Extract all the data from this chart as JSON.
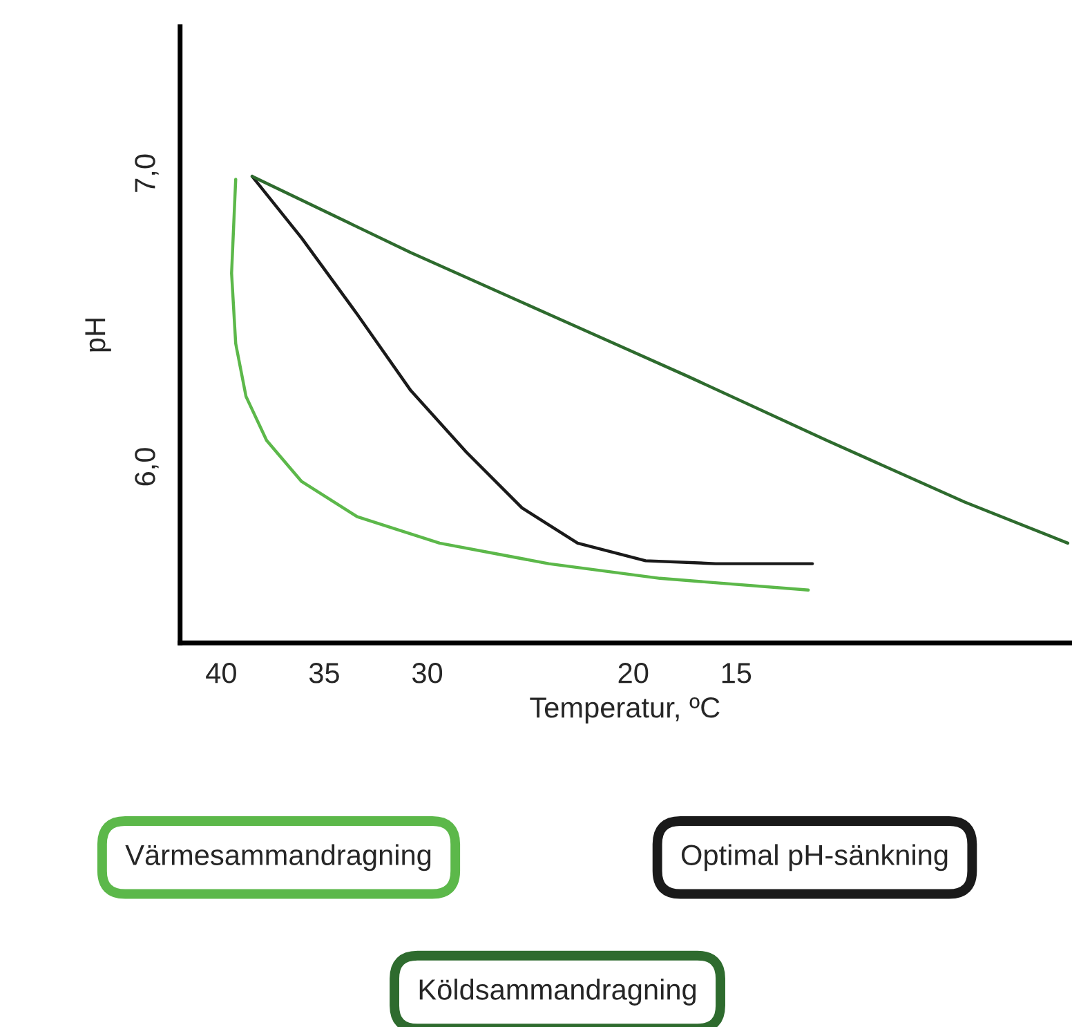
{
  "chart_data": {
    "type": "line",
    "xlabel": "Temperatur, ºC",
    "ylabel": "pH",
    "xlim": [
      42,
      -1.2
    ],
    "ylim": [
      5.4,
      7.5
    ],
    "xticks": [
      40,
      35,
      30,
      20,
      15
    ],
    "yticks": [
      {
        "value": 6.0,
        "label": "6,0"
      },
      {
        "value": 7.0,
        "label": "7,0"
      }
    ],
    "grid": false,
    "legend": "bottom",
    "marker": "none",
    "line_style": "solid",
    "series": [
      {
        "name": "Värmesammandragning",
        "color": "#5cb84a",
        "x": [
          39.3,
          39.5,
          39.3,
          38.8,
          37.8,
          36.1,
          33.4,
          29.4,
          24.1,
          18.7,
          11.5
        ],
        "values": [
          6.98,
          6.66,
          6.42,
          6.24,
          6.09,
          5.95,
          5.83,
          5.74,
          5.67,
          5.62,
          5.58
        ]
      },
      {
        "name": "Optimal pH-sänkning",
        "color": "#1a1a1a",
        "x": [
          38.5,
          36.1,
          33.4,
          30.8,
          28.1,
          25.4,
          22.7,
          19.4,
          16.0,
          11.3
        ],
        "values": [
          6.99,
          6.78,
          6.52,
          6.26,
          6.05,
          5.86,
          5.74,
          5.68,
          5.67,
          5.67
        ]
      },
      {
        "name": "Köldsammandragning",
        "color": "#2e6b2e",
        "x": [
          38.5,
          30.8,
          24.1,
          17.4,
          10.6,
          3.9,
          -1.1
        ],
        "values": [
          6.99,
          6.73,
          6.52,
          6.31,
          6.09,
          5.88,
          5.74
        ]
      }
    ]
  }
}
